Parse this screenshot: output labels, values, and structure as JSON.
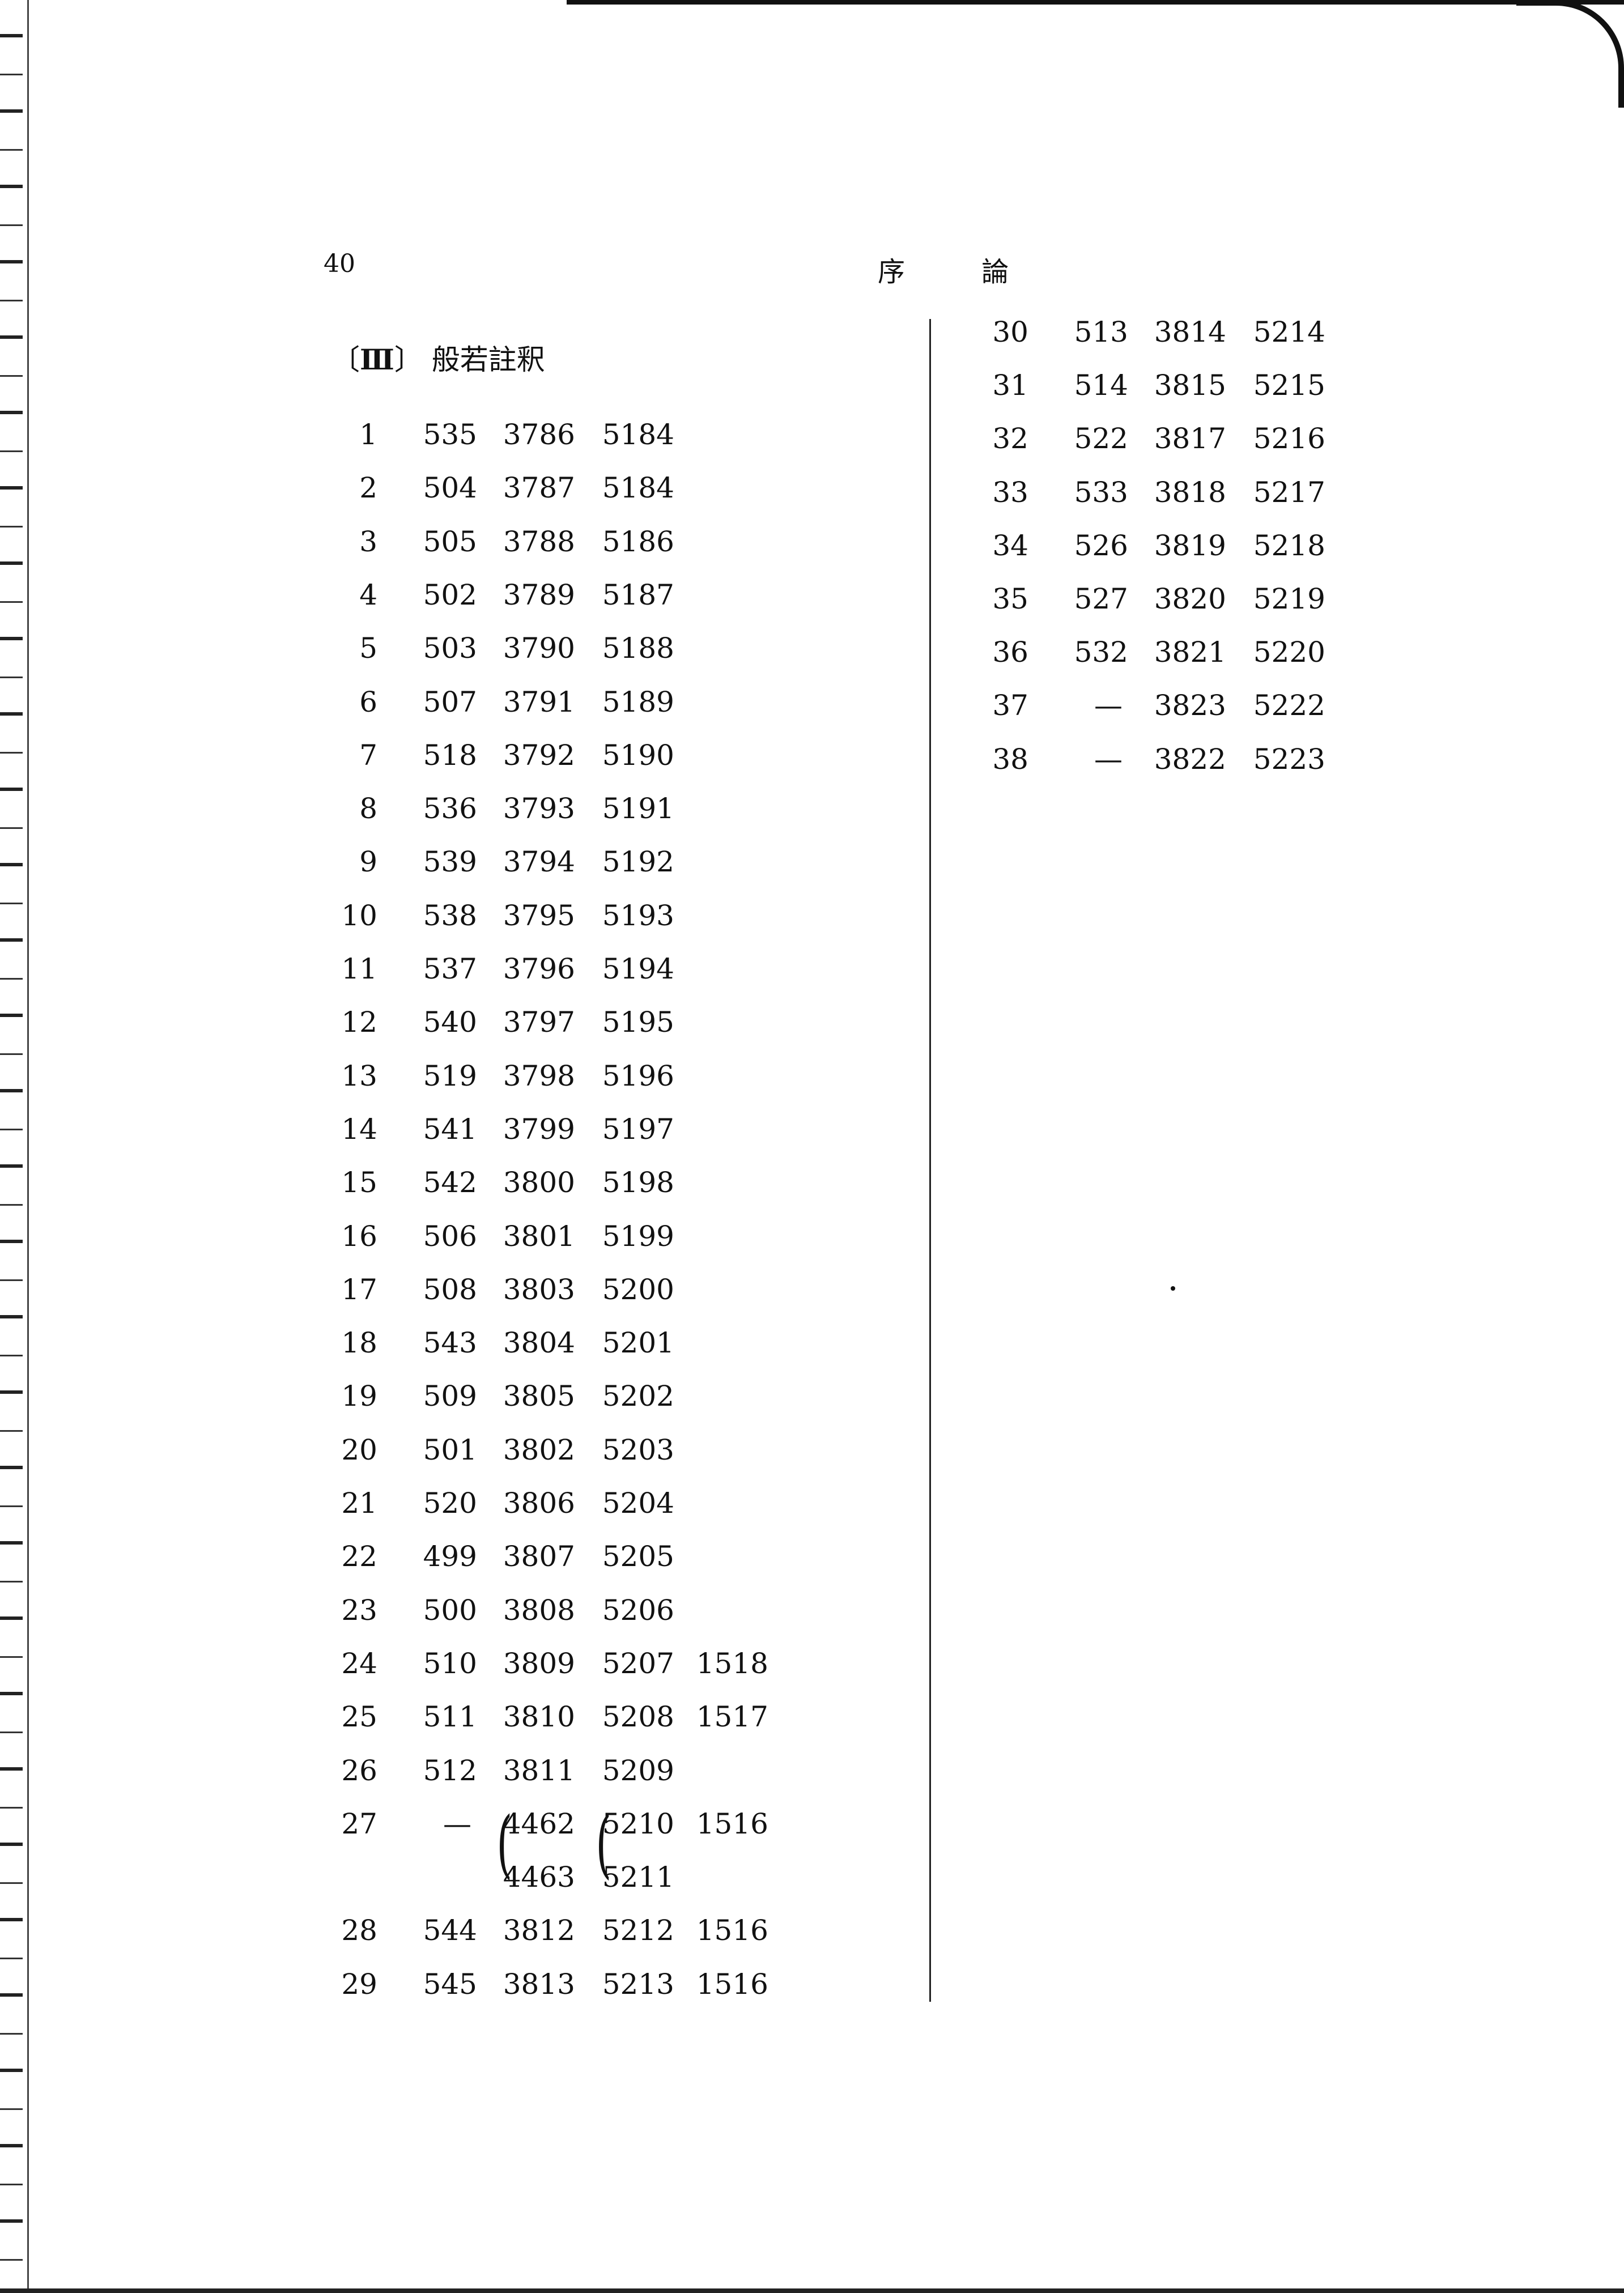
{
  "header": {
    "page_number": "40",
    "running_title": "序 論"
  },
  "section": {
    "number": "Ⅲ",
    "title": "般若註釈"
  },
  "left_rows": [
    [
      "1",
      "535",
      "3786",
      "5184",
      ""
    ],
    [
      "2",
      "504",
      "3787",
      "5184",
      ""
    ],
    [
      "3",
      "505",
      "3788",
      "5186",
      ""
    ],
    [
      "4",
      "502",
      "3789",
      "5187",
      ""
    ],
    [
      "5",
      "503",
      "3790",
      "5188",
      ""
    ],
    [
      "6",
      "507",
      "3791",
      "5189",
      ""
    ],
    [
      "7",
      "518",
      "3792",
      "5190",
      ""
    ],
    [
      "8",
      "536",
      "3793",
      "5191",
      ""
    ],
    [
      "9",
      "539",
      "3794",
      "5192",
      ""
    ],
    [
      "10",
      "538",
      "3795",
      "5193",
      ""
    ],
    [
      "11",
      "537",
      "3796",
      "5194",
      ""
    ],
    [
      "12",
      "540",
      "3797",
      "5195",
      ""
    ],
    [
      "13",
      "519",
      "3798",
      "5196",
      ""
    ],
    [
      "14",
      "541",
      "3799",
      "5197",
      ""
    ],
    [
      "15",
      "542",
      "3800",
      "5198",
      ""
    ],
    [
      "16",
      "506",
      "3801",
      "5199",
      ""
    ],
    [
      "17",
      "508",
      "3803",
      "5200",
      ""
    ],
    [
      "18",
      "543",
      "3804",
      "5201",
      ""
    ],
    [
      "19",
      "509",
      "3805",
      "5202",
      ""
    ],
    [
      "20",
      "501",
      "3802",
      "5203",
      ""
    ],
    [
      "21",
      "520",
      "3806",
      "5204",
      ""
    ],
    [
      "22",
      "499",
      "3807",
      "5205",
      ""
    ],
    [
      "23",
      "500",
      "3808",
      "5206",
      ""
    ],
    [
      "24",
      "510",
      "3809",
      "5207",
      "1518"
    ],
    [
      "25",
      "511",
      "3810",
      "5208",
      "1517"
    ],
    [
      "26",
      "512",
      "3811",
      "5209",
      ""
    ],
    [
      "27",
      "—",
      [
        "4462",
        "4463"
      ],
      [
        "5210",
        "5211"
      ],
      "1516"
    ],
    [
      "28",
      "544",
      "3812",
      "5212",
      "1516"
    ],
    [
      "29",
      "545",
      "3813",
      "5213",
      "1516"
    ]
  ],
  "right_rows": [
    [
      "30",
      "513",
      "3814",
      "5214"
    ],
    [
      "31",
      "514",
      "3815",
      "5215"
    ],
    [
      "32",
      "522",
      "3817",
      "5216"
    ],
    [
      "33",
      "533",
      "3818",
      "5217"
    ],
    [
      "34",
      "526",
      "3819",
      "5218"
    ],
    [
      "35",
      "527",
      "3820",
      "5219"
    ],
    [
      "36",
      "532",
      "3821",
      "5220"
    ],
    [
      "37",
      "—",
      "3823",
      "5222"
    ],
    [
      "38",
      "—",
      "3822",
      "5223"
    ]
  ]
}
